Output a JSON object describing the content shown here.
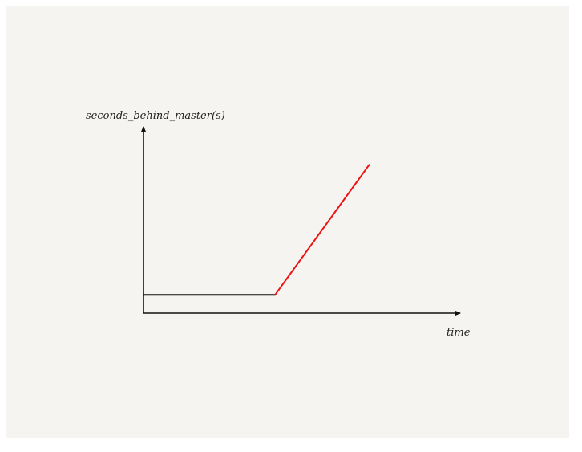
{
  "chart_data": {
    "type": "line",
    "title": "",
    "xlabel": "time",
    "ylabel": "seconds_behind_master(s)",
    "grid": false,
    "legend": "none",
    "series": [
      {
        "color": "#111111",
        "x": [
          0,
          4.2
        ],
        "y": [
          1,
          1
        ]
      },
      {
        "color": "#ee1111",
        "x": [
          4.2,
          7.2
        ],
        "y": [
          1,
          8.1
        ]
      }
    ],
    "xlim": [
      0,
      10
    ],
    "ylim": [
      0,
      10
    ]
  }
}
